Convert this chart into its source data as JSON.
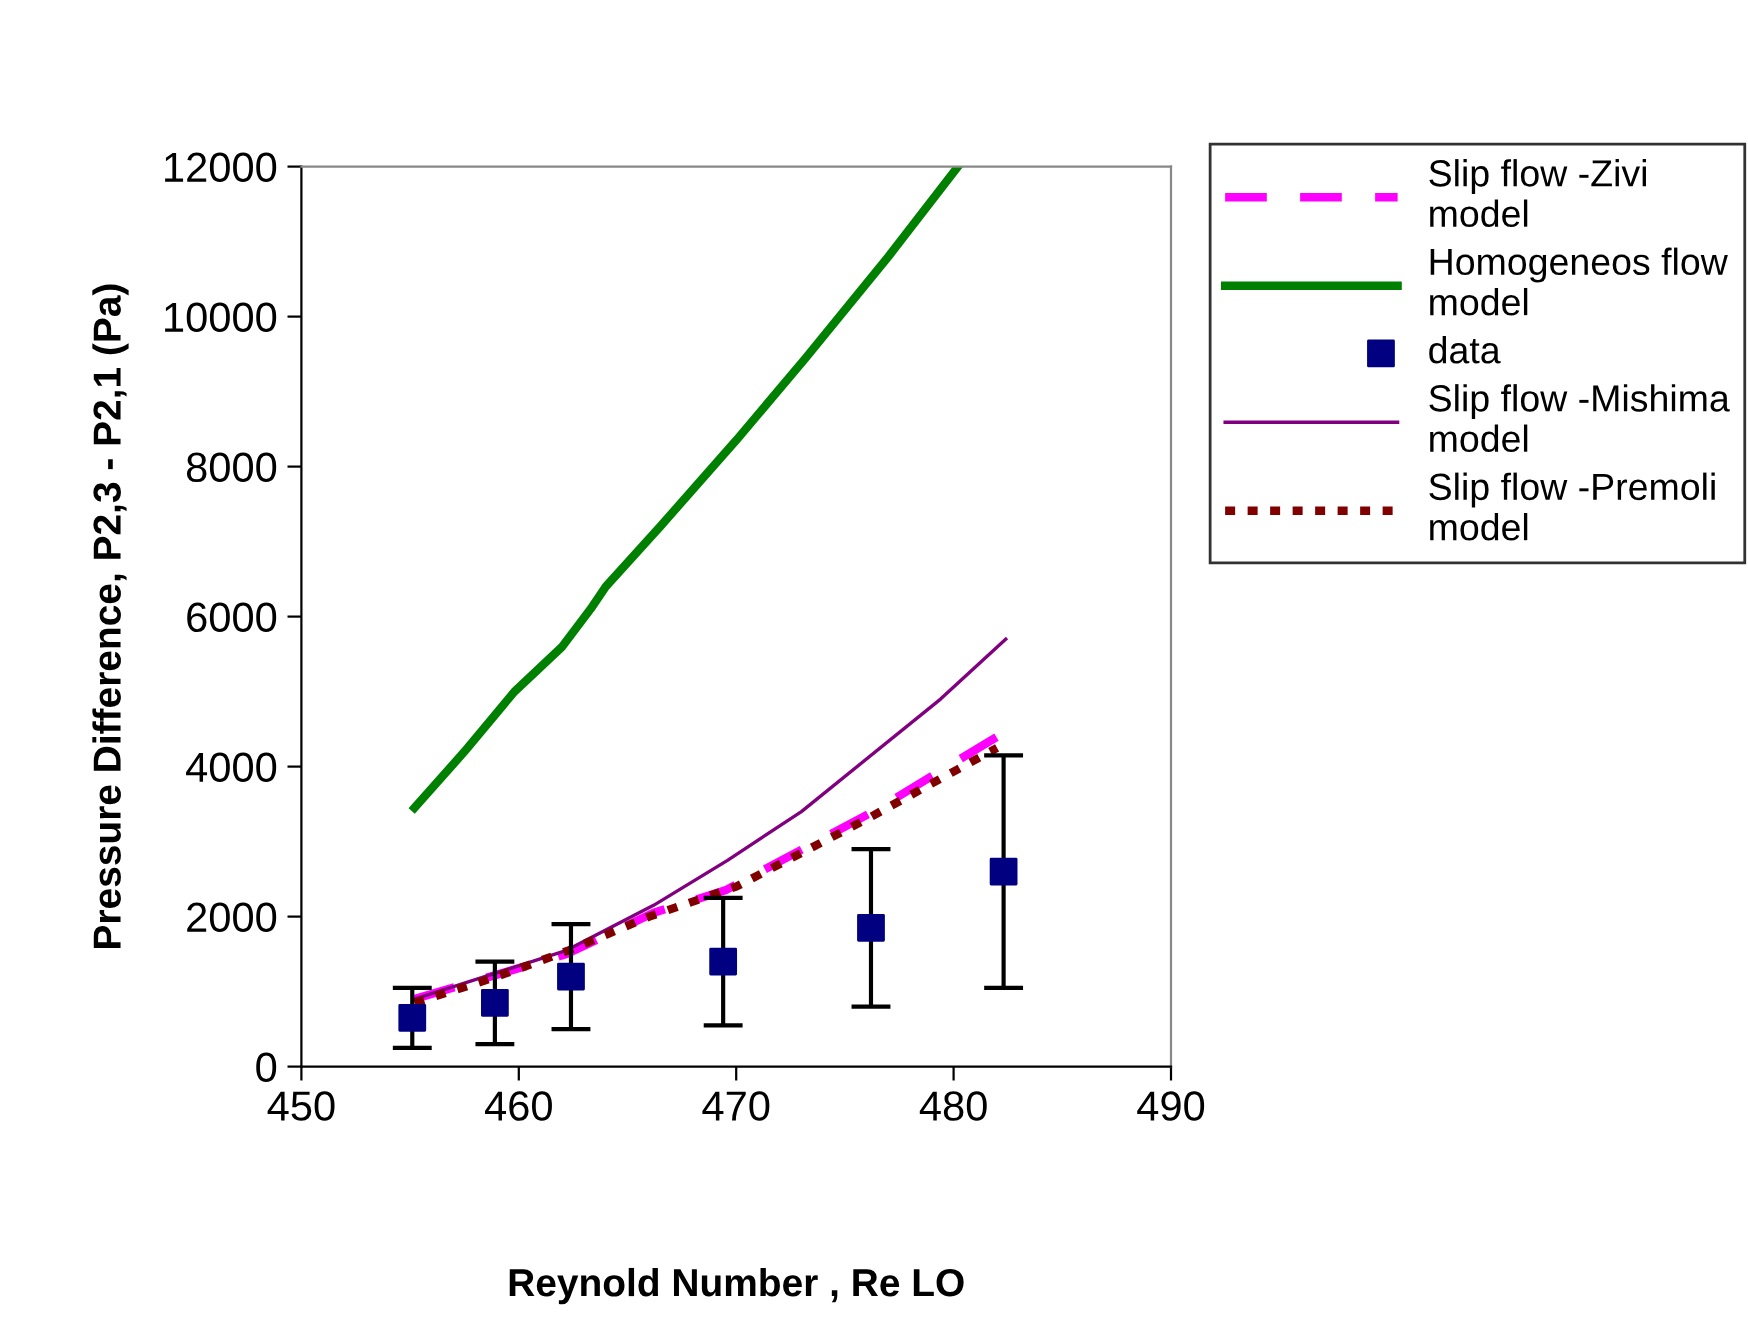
{
  "chart_data": {
    "type": "line",
    "xlabel": "Reynold Number , Re LO",
    "ylabel": "Pressure Difference, P2,3 - P2,1 (Pa)",
    "xlim": [
      450,
      490
    ],
    "xticks": [
      450,
      460,
      470,
      480,
      490
    ],
    "ylim": [
      0,
      12000
    ],
    "yticks": [
      0,
      2000,
      4000,
      6000,
      8000,
      10000,
      12000
    ],
    "grid": false,
    "legend": "top right",
    "series": [
      {
        "name": "Slip flow -Zivi model",
        "color": "#ff00ff",
        "line_style": "dashed",
        "marker": "none",
        "x": [
          455.2,
          462.2,
          466.2,
          469.5,
          476.3,
          482.3
        ],
        "values": [
          900,
          1500,
          2050,
          2350,
          3400,
          4450
        ]
      },
      {
        "name": "Homogeneos flow model",
        "color": "#008000",
        "line_style": "solid",
        "marker": "none",
        "x": [
          455.2,
          457.5,
          459.8,
          462,
          463.3,
          464,
          466.5,
          470,
          473.2,
          477,
          480.2
        ],
        "values": [
          3450,
          4200,
          5000,
          5600,
          6100,
          6400,
          7200,
          8350,
          9450,
          10800,
          12000
        ]
      },
      {
        "name": "data",
        "type": "scatter",
        "color": "#000080",
        "marker": "square",
        "x": [
          455.1,
          458.9,
          462.4,
          469.4,
          476.2,
          482.3
        ],
        "values": [
          650,
          850,
          1200,
          1400,
          1850,
          2600
        ],
        "errors": [
          400,
          550,
          700,
          850,
          1050,
          1550
        ]
      },
      {
        "name": "Slip flow -Mishima model",
        "color": "#800080",
        "line_style": "solid",
        "marker": "none",
        "x": [
          455.2,
          462.2,
          466.2,
          469.6,
          473,
          479.4,
          482.4
        ],
        "values": [
          900,
          1550,
          2150,
          2750,
          3400,
          4900,
          5700
        ]
      },
      {
        "name": "Slip flow -Premoli model",
        "color": "#800000",
        "line_style": "dotted",
        "marker": "none",
        "x": [
          455.2,
          459,
          462.3,
          466,
          470,
          476,
          482
        ],
        "values": [
          850,
          1200,
          1550,
          2000,
          2400,
          3300,
          4250
        ]
      }
    ]
  }
}
